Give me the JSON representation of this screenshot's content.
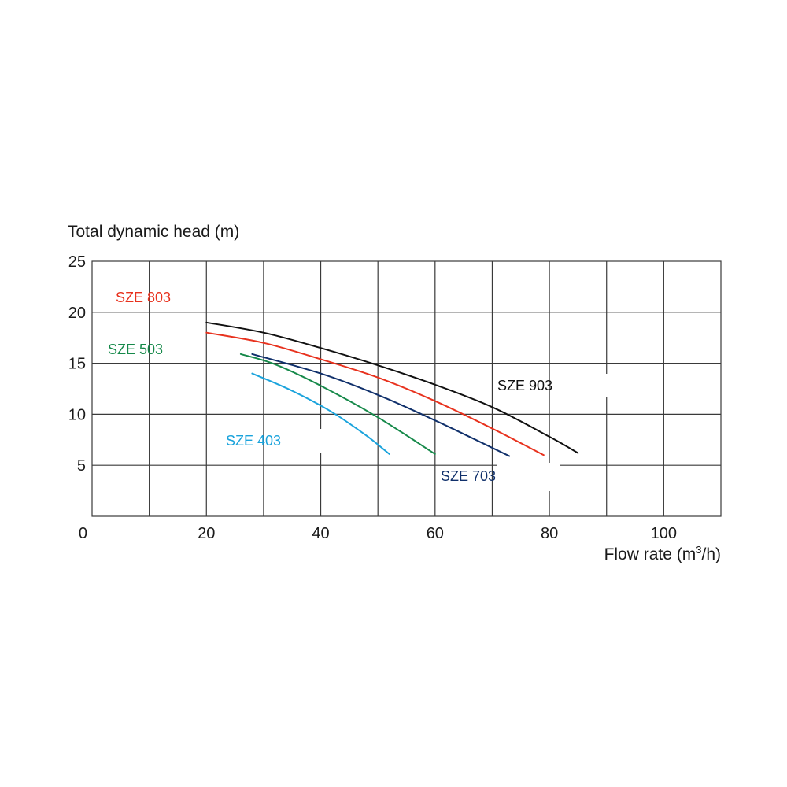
{
  "chart_data": {
    "type": "line",
    "title": "",
    "ylabel": "Total dynamic head (m)",
    "xlabel_main": "Flow rate (m",
    "xlabel_sup": "3",
    "xlabel_end": "/h)",
    "xlim": [
      0,
      110
    ],
    "ylim": [
      0,
      25
    ],
    "x_ticks": [
      0,
      10,
      20,
      30,
      40,
      50,
      60,
      70,
      80,
      90,
      100,
      110
    ],
    "x_tick_labels": [
      {
        "value": 0,
        "label": "0"
      },
      {
        "value": 20,
        "label": "20"
      },
      {
        "value": 40,
        "label": "40"
      },
      {
        "value": 60,
        "label": "60"
      },
      {
        "value": 80,
        "label": "80"
      },
      {
        "value": 100,
        "label": "100"
      }
    ],
    "y_ticks": [
      0,
      5,
      10,
      15,
      20,
      25
    ],
    "y_tick_labels": [
      {
        "value": 5,
        "label": "5"
      },
      {
        "value": 10,
        "label": "10"
      },
      {
        "value": 15,
        "label": "15"
      },
      {
        "value": 20,
        "label": "20"
      },
      {
        "value": 25,
        "label": "25"
      }
    ],
    "grid": true,
    "series": [
      {
        "name": "SZE 903",
        "color": "#111111",
        "points": [
          [
            20,
            19.0
          ],
          [
            30,
            18.0
          ],
          [
            40,
            16.5
          ],
          [
            50,
            14.8
          ],
          [
            60,
            12.9
          ],
          [
            70,
            10.7
          ],
          [
            80,
            7.8
          ],
          [
            85,
            6.2
          ]
        ]
      },
      {
        "name": "SZE 803",
        "color": "#e8321e",
        "points": [
          [
            20,
            18.0
          ],
          [
            30,
            17.0
          ],
          [
            40,
            15.4
          ],
          [
            50,
            13.6
          ],
          [
            60,
            11.3
          ],
          [
            70,
            8.6
          ],
          [
            79,
            6.0
          ]
        ]
      },
      {
        "name": "SZE 703",
        "color": "#10306b",
        "points": [
          [
            28,
            15.9
          ],
          [
            40,
            14.0
          ],
          [
            50,
            11.9
          ],
          [
            60,
            9.4
          ],
          [
            73,
            5.9
          ]
        ]
      },
      {
        "name": "SZE 503",
        "color": "#16894a",
        "points": [
          [
            26,
            15.9
          ],
          [
            32,
            14.9
          ],
          [
            40,
            12.8
          ],
          [
            50,
            9.7
          ],
          [
            60,
            6.1
          ]
        ]
      },
      {
        "name": "SZE 403",
        "color": "#1aa3dc",
        "points": [
          [
            28,
            14.0
          ],
          [
            35,
            12.3
          ],
          [
            42,
            10.2
          ],
          [
            48,
            7.9
          ],
          [
            52,
            6.1
          ]
        ]
      }
    ]
  }
}
